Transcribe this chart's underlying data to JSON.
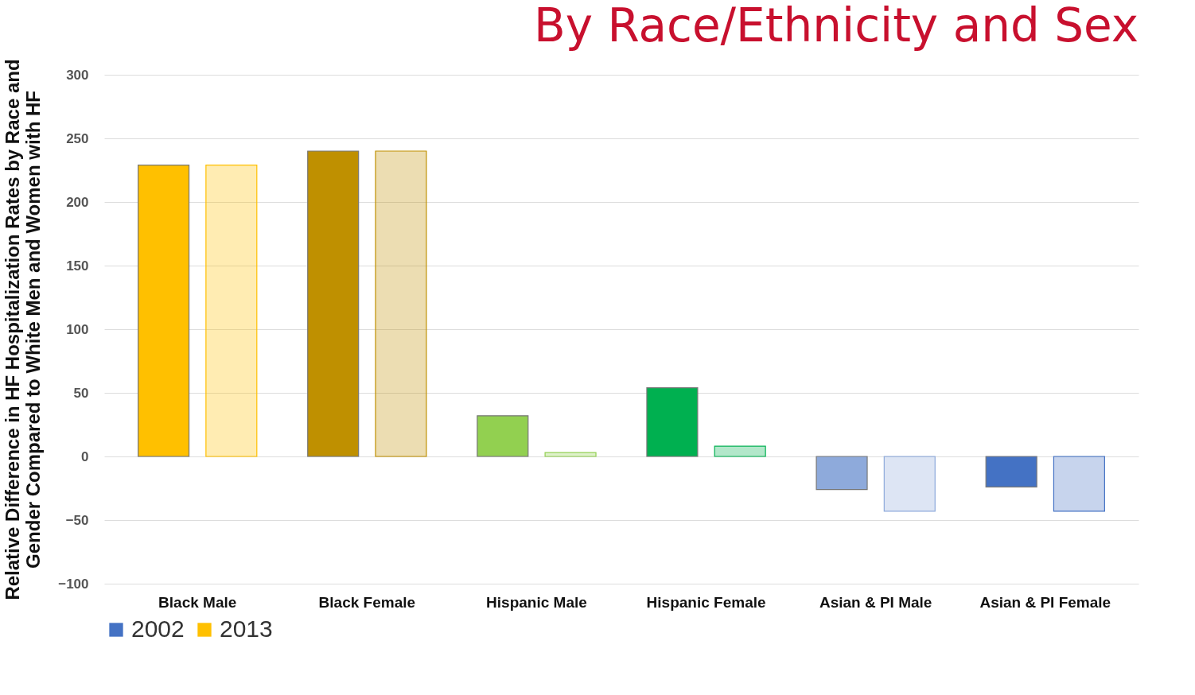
{
  "chart_data": {
    "type": "bar",
    "title": "By Race/Ethnicity and Sex",
    "ylabel": "Relative Difference in HF Hospitalization Rates by Race and Gender Compared to White Men and Women with HF",
    "categories": [
      "Black Male",
      "Black Female",
      "Hispanic Male",
      "Hispanic Female",
      "Asian & PI Male",
      "Asian & PI Female"
    ],
    "series": [
      {
        "name": "2002",
        "color": "#4472c4",
        "colors": [
          "#ffc000",
          "#bf9000",
          "#92d050",
          "#00b050",
          "#8eaadb",
          "#4472c4"
        ],
        "values": [
          229,
          240,
          32,
          54,
          -26,
          -24
        ]
      },
      {
        "name": "2013",
        "color": "#ffc000",
        "colors": [
          "#ffc000",
          "#bf9000",
          "#92d050",
          "#00b050",
          "#8eaadb",
          "#4472c4"
        ],
        "values": [
          229,
          240,
          3,
          8,
          -43,
          -43
        ]
      }
    ],
    "ylim": [
      -100,
      300
    ],
    "yticks": [
      -100,
      -50,
      0,
      50,
      100,
      150,
      200,
      250,
      300
    ],
    "grid": "y",
    "legend": "bottom"
  }
}
